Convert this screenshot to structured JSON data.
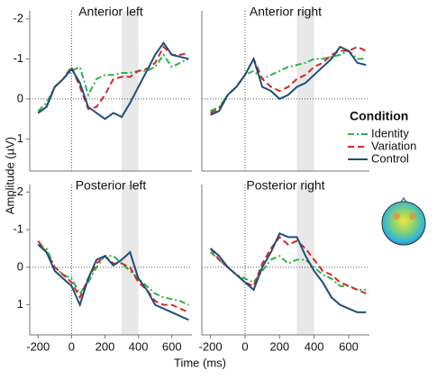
{
  "axis_labels": {
    "x": "Time (ms)",
    "y": "Amplitude (µV)"
  },
  "legend": {
    "title": "Condition",
    "entries": [
      {
        "name": "Identity",
        "color": "#2db34a",
        "dash": "7 3 2 3"
      },
      {
        "name": "Variation",
        "color": "#d62728",
        "dash": "7 4"
      },
      {
        "name": "Control",
        "color": "#1f4e79",
        "dash": ""
      }
    ]
  },
  "chart_data": [
    {
      "type": "line",
      "title": "Anterior left",
      "y_reversed": true,
      "xlim": [
        -250,
        720
      ],
      "ylim": [
        -2.2,
        1.8
      ],
      "yticks": [
        -2,
        -1,
        0,
        1
      ],
      "highlight": [
        300,
        400
      ],
      "x": [
        -200,
        -150,
        -100,
        -50,
        0,
        50,
        100,
        150,
        200,
        250,
        300,
        350,
        400,
        450,
        500,
        550,
        600,
        650,
        700
      ],
      "series": [
        {
          "values": [
            0.3,
            0.1,
            -0.3,
            -0.5,
            -0.7,
            -0.8,
            -0.1,
            -0.5,
            -0.6,
            -0.6,
            -0.65,
            -0.65,
            -0.7,
            -0.7,
            -0.8,
            -1.1,
            -0.8,
            -0.9,
            -1.0
          ]
        },
        {
          "values": [
            0.35,
            0.2,
            -0.3,
            -0.5,
            -0.8,
            -0.3,
            0.25,
            0.2,
            -0.1,
            -0.5,
            -0.55,
            -0.55,
            -0.7,
            -0.75,
            -0.9,
            -1.3,
            -1.1,
            -1.1,
            -1.15
          ]
        },
        {
          "values": [
            0.35,
            0.2,
            -0.3,
            -0.5,
            -0.75,
            -0.4,
            0.2,
            0.35,
            0.5,
            0.35,
            0.45,
            0.1,
            -0.3,
            -0.7,
            -1.1,
            -1.4,
            -1.1,
            -1.05,
            -1.0
          ]
        }
      ]
    },
    {
      "type": "line",
      "title": "Anterior right",
      "y_reversed": true,
      "xlim": [
        -250,
        720
      ],
      "ylim": [
        -2.2,
        1.8
      ],
      "highlight": [
        300,
        400
      ],
      "x": [
        -200,
        -150,
        -100,
        -50,
        0,
        50,
        100,
        150,
        200,
        250,
        300,
        350,
        400,
        450,
        500,
        550,
        600,
        650,
        700
      ],
      "series": [
        {
          "values": [
            0.3,
            0.2,
            -0.1,
            -0.3,
            -0.6,
            -0.7,
            -0.5,
            -0.6,
            -0.7,
            -0.8,
            -0.85,
            -0.9,
            -1.0,
            -1.0,
            -1.05,
            -1.1,
            -1.2,
            -1.0,
            -1.0
          ]
        },
        {
          "values": [
            0.35,
            0.25,
            -0.1,
            -0.3,
            -0.6,
            -1.0,
            -0.5,
            -0.3,
            -0.2,
            -0.3,
            -0.5,
            -0.6,
            -0.8,
            -0.9,
            -1.1,
            -1.2,
            -1.2,
            -1.3,
            -1.2
          ]
        },
        {
          "values": [
            0.4,
            0.3,
            -0.1,
            -0.3,
            -0.6,
            -1.0,
            -0.3,
            -0.2,
            0.0,
            -0.1,
            -0.3,
            -0.4,
            -0.6,
            -0.8,
            -1.0,
            -1.3,
            -1.2,
            -0.9,
            -0.85
          ]
        }
      ]
    },
    {
      "type": "line",
      "title": "Posterior left",
      "y_reversed": true,
      "xlim": [
        -250,
        720
      ],
      "ylim": [
        -2.2,
        1.8
      ],
      "yticks": [
        -2,
        -1,
        0,
        1
      ],
      "xticks": [
        -200,
        0,
        200,
        400,
        600
      ],
      "highlight": [
        300,
        400
      ],
      "x": [
        -200,
        -150,
        -100,
        -50,
        0,
        50,
        100,
        150,
        200,
        250,
        300,
        350,
        400,
        450,
        500,
        550,
        600,
        650,
        700
      ],
      "series": [
        {
          "values": [
            -0.6,
            -0.5,
            0.0,
            0.2,
            0.3,
            0.7,
            0.4,
            0.0,
            -0.3,
            -0.3,
            -0.1,
            0.1,
            0.3,
            0.5,
            0.7,
            0.8,
            0.85,
            0.9,
            1.0
          ]
        },
        {
          "values": [
            -0.7,
            -0.4,
            0.0,
            0.2,
            0.4,
            0.8,
            0.3,
            -0.1,
            -0.3,
            -0.1,
            -0.1,
            0.0,
            0.4,
            0.6,
            0.9,
            1.0,
            1.0,
            1.1,
            1.2
          ]
        },
        {
          "values": [
            -0.6,
            -0.4,
            0.1,
            0.3,
            0.5,
            1.0,
            0.3,
            -0.2,
            -0.3,
            -0.05,
            -0.2,
            -0.4,
            0.3,
            0.6,
            1.0,
            1.1,
            1.2,
            1.3,
            1.4
          ]
        }
      ]
    },
    {
      "type": "line",
      "title": "Posterior right",
      "y_reversed": true,
      "xlim": [
        -250,
        720
      ],
      "ylim": [
        -2.2,
        1.8
      ],
      "xticks": [
        -200,
        0,
        200,
        400,
        600
      ],
      "highlight": [
        300,
        400
      ],
      "x": [
        -200,
        -150,
        -100,
        -50,
        0,
        50,
        100,
        150,
        200,
        250,
        300,
        350,
        400,
        450,
        500,
        550,
        600,
        650,
        700
      ],
      "series": [
        {
          "values": [
            -0.4,
            -0.2,
            0.0,
            0.2,
            0.3,
            0.4,
            0.1,
            -0.2,
            -0.3,
            -0.1,
            -0.2,
            -0.2,
            0.0,
            0.2,
            0.3,
            0.5,
            0.5,
            0.6,
            0.6
          ]
        },
        {
          "values": [
            -0.5,
            -0.2,
            0.0,
            0.2,
            0.4,
            0.5,
            -0.1,
            -0.5,
            -0.8,
            -0.6,
            -0.7,
            -0.5,
            -0.2,
            0.1,
            0.2,
            0.4,
            0.5,
            0.6,
            0.7
          ]
        },
        {
          "values": [
            -0.5,
            -0.3,
            0.0,
            0.2,
            0.4,
            0.6,
            0.0,
            -0.4,
            -0.9,
            -0.8,
            -0.8,
            -0.3,
            0.1,
            0.4,
            0.8,
            1.0,
            1.1,
            1.2,
            1.2
          ]
        }
      ]
    }
  ]
}
